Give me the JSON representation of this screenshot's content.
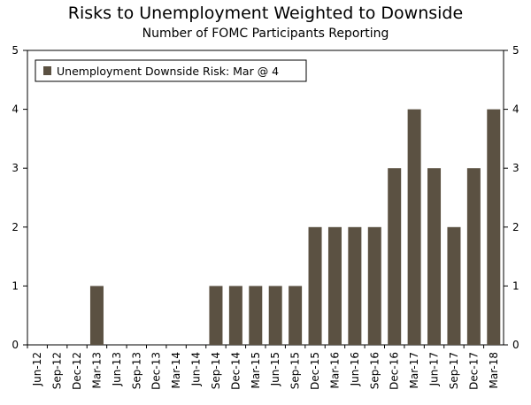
{
  "header": {
    "title": "Risks to Unemployment Weighted to Downside",
    "subtitle": "Number of FOMC Participants Reporting"
  },
  "chart_data": {
    "type": "bar",
    "title": "Risks to Unemployment Weighted to Downside",
    "subtitle": "Number of FOMC Participants Reporting",
    "categories": [
      "Jun-12",
      "Sep-12",
      "Dec-12",
      "Mar-13",
      "Jun-13",
      "Sep-13",
      "Dec-13",
      "Mar-14",
      "Jun-14",
      "Sep-14",
      "Dec-14",
      "Mar-15",
      "Jun-15",
      "Sep-15",
      "Dec-15",
      "Mar-16",
      "Jun-16",
      "Sep-16",
      "Dec-16",
      "Mar-17",
      "Jun-17",
      "Sep-17",
      "Dec-17",
      "Mar-18"
    ],
    "series": [
      {
        "name": "Unemployment Downside Risk: Mar @ 4",
        "values": [
          0,
          0,
          0,
          1,
          0,
          0,
          0,
          0,
          0,
          1,
          1,
          1,
          1,
          1,
          2,
          2,
          2,
          2,
          3,
          4,
          3,
          2,
          3,
          4
        ]
      }
    ],
    "ylim": [
      0,
      5
    ],
    "yticks": [
      0,
      1,
      2,
      3,
      4,
      5
    ],
    "xlabel": "",
    "ylabel": "",
    "legend": "top-left",
    "grid": false,
    "colors": {
      "bar": "#5b5142",
      "axis": "#000000"
    }
  }
}
